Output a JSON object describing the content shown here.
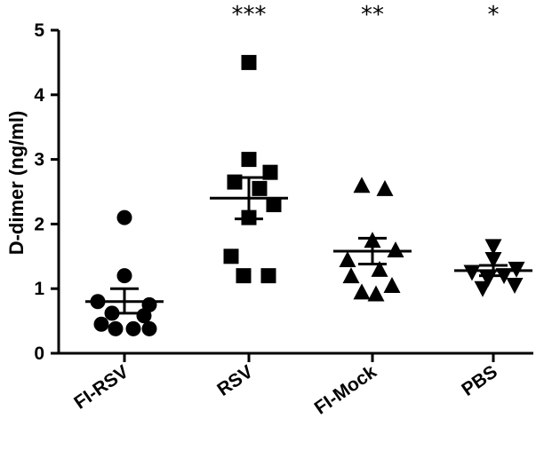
{
  "chart_data": {
    "type": "scatter",
    "ylabel": "D-dimer (ng/ml)",
    "ylim": [
      0,
      5
    ],
    "yticks": [
      0,
      1,
      2,
      3,
      4,
      5
    ],
    "categories": [
      "FI-RSV",
      "RSV",
      "FI-Mock",
      "PBS"
    ],
    "groups": [
      {
        "name": "FI-RSV",
        "marker": "circle",
        "points": [
          2.1,
          1.2,
          0.8,
          0.75,
          0.62,
          0.58,
          0.45,
          0.38,
          0.38,
          0.38
        ],
        "mean": 0.8,
        "sem_low": 0.62,
        "sem_high": 1.0,
        "significance": ""
      },
      {
        "name": "RSV",
        "marker": "square",
        "points": [
          4.5,
          3.0,
          2.8,
          2.65,
          2.55,
          2.3,
          2.1,
          1.5,
          1.2,
          1.2
        ],
        "mean": 2.4,
        "sem_low": 2.08,
        "sem_high": 2.72,
        "significance": "***"
      },
      {
        "name": "FI-Mock",
        "marker": "triangle-up",
        "points": [
          2.6,
          2.55,
          1.75,
          1.6,
          1.45,
          1.3,
          1.2,
          1.05,
          0.95,
          0.92
        ],
        "mean": 1.58,
        "sem_low": 1.38,
        "sem_high": 1.78,
        "significance": "**"
      },
      {
        "name": "PBS",
        "marker": "triangle-down",
        "points": [
          1.65,
          1.45,
          1.3,
          1.25,
          1.2,
          1.15,
          1.05,
          1.0
        ],
        "mean": 1.28,
        "sem_low": 1.2,
        "sem_high": 1.36,
        "significance": "*"
      }
    ]
  }
}
